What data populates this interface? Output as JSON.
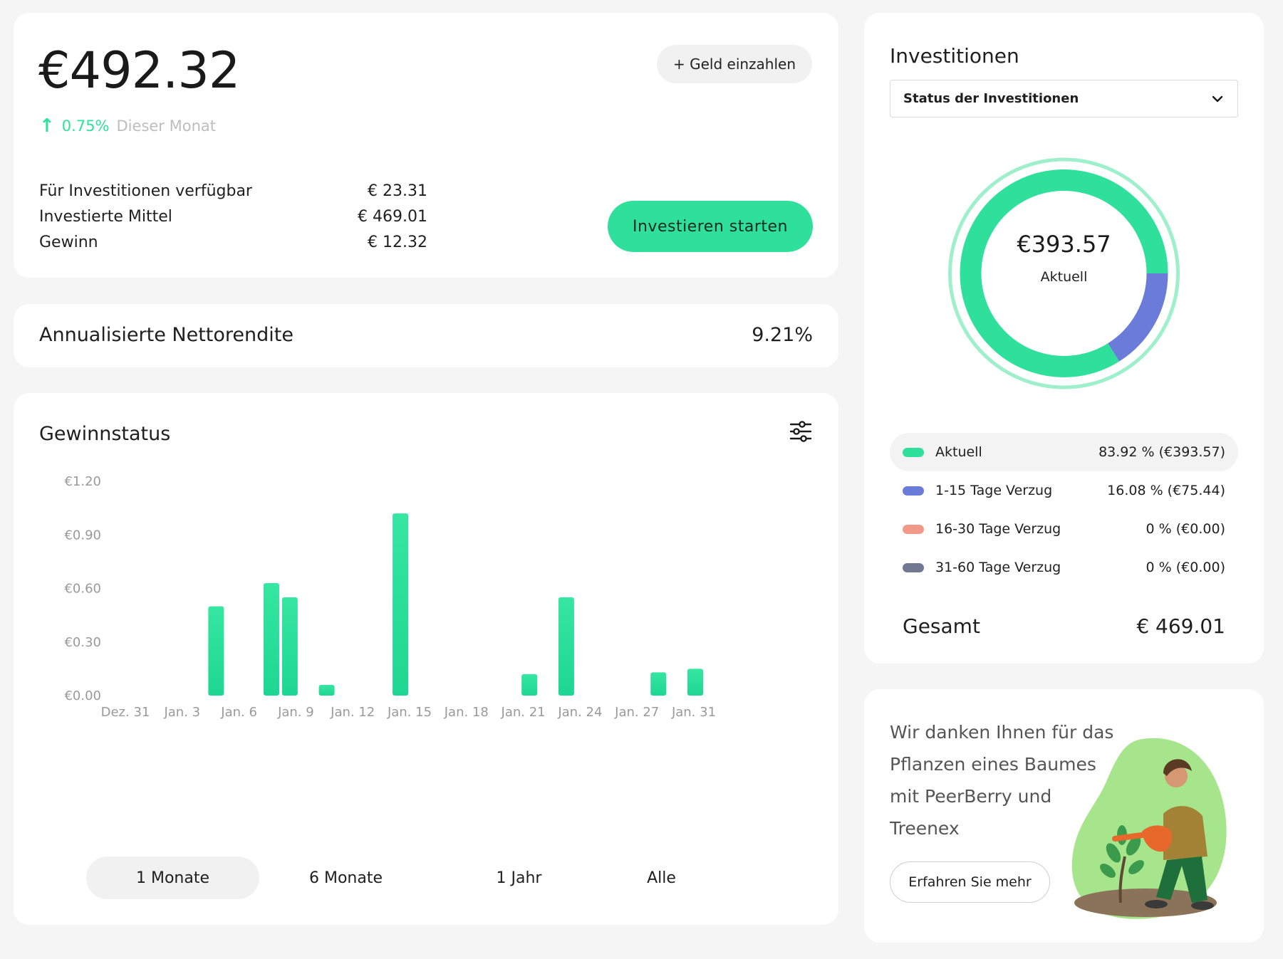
{
  "balance": {
    "amount": "€492.32",
    "deposit_label": "+ Geld einzahlen",
    "change_pct": "0.75%",
    "change_label": "Dieser Monat",
    "stats": [
      {
        "label": "Für Investitionen verfügbar",
        "value": "€ 23.31"
      },
      {
        "label": "Investierte Mittel",
        "value": "€ 469.01"
      },
      {
        "label": "Gewinn",
        "value": "€ 12.32"
      }
    ],
    "invest_label": "Investieren starten"
  },
  "nettorendite": {
    "label": "Annualisierte Nettorendite",
    "value": "9.21%"
  },
  "gewinnstatus": {
    "title": "Gewinnstatus",
    "filter_icon": "sliders-icon",
    "tabs": [
      {
        "label": "1 Monate",
        "active": true
      },
      {
        "label": "6 Monate",
        "active": false
      },
      {
        "label": "1 Jahr",
        "active": false
      },
      {
        "label": "Alle",
        "active": false
      }
    ]
  },
  "chart_data": {
    "type": "bar",
    "ytick_labels": [
      "€0.00",
      "€0.30",
      "€0.60",
      "€0.90",
      "€1.20"
    ],
    "ylim": [
      0,
      1.2
    ],
    "xtick_labels": [
      "Dez. 31",
      "Jan. 3",
      "Jan. 6",
      "Jan. 9",
      "Jan. 12",
      "Jan. 15",
      "Jan. 18",
      "Jan. 21",
      "Jan. 24",
      "Jan. 27",
      "Jan. 31"
    ],
    "x_range": [
      0,
      31
    ],
    "bars": [
      {
        "day": 5,
        "value": 0.5
      },
      {
        "day": 8,
        "value": 0.63
      },
      {
        "day": 9,
        "value": 0.55
      },
      {
        "day": 11,
        "value": 0.06
      },
      {
        "day": 15,
        "value": 1.02
      },
      {
        "day": 22,
        "value": 0.12
      },
      {
        "day": 24,
        "value": 0.55
      },
      {
        "day": 29,
        "value": 0.13
      },
      {
        "day": 31,
        "value": 0.15
      }
    ],
    "color": "#2fe09c",
    "grid": false
  },
  "investitionen": {
    "title": "Investitionen",
    "select_value": "Status der Investitionen",
    "center_amount": "€393.57",
    "center_label": "Aktuell",
    "donut": [
      {
        "label": "Aktuell",
        "fraction": 0.8392,
        "color": "#2fe09c"
      },
      {
        "label": "1-15 Tage Verzug",
        "fraction": 0.1608,
        "color": "#6b7bd9"
      }
    ],
    "legend": [
      {
        "label": "Aktuell",
        "value": "83.92 % (€393.57)",
        "color": "#2fe09c",
        "active": true
      },
      {
        "label": "1-15 Tage Verzug",
        "value": "16.08 % (€75.44)",
        "color": "#6b7bd9",
        "active": false
      },
      {
        "label": "16-30 Tage Verzug",
        "value": "0 % (€0.00)",
        "color": "#f3998a",
        "active": false
      },
      {
        "label": "31-60 Tage Verzug",
        "value": "0 % (€0.00)",
        "color": "#717891",
        "active": false
      }
    ],
    "total_label": "Gesamt",
    "total_value": "€ 469.01"
  },
  "tree": {
    "text": "Wir danken Ihnen für das Pflanzen eines Baumes mit PeerBerry und Treenex",
    "button_label": "Erfahren Sie mehr"
  }
}
